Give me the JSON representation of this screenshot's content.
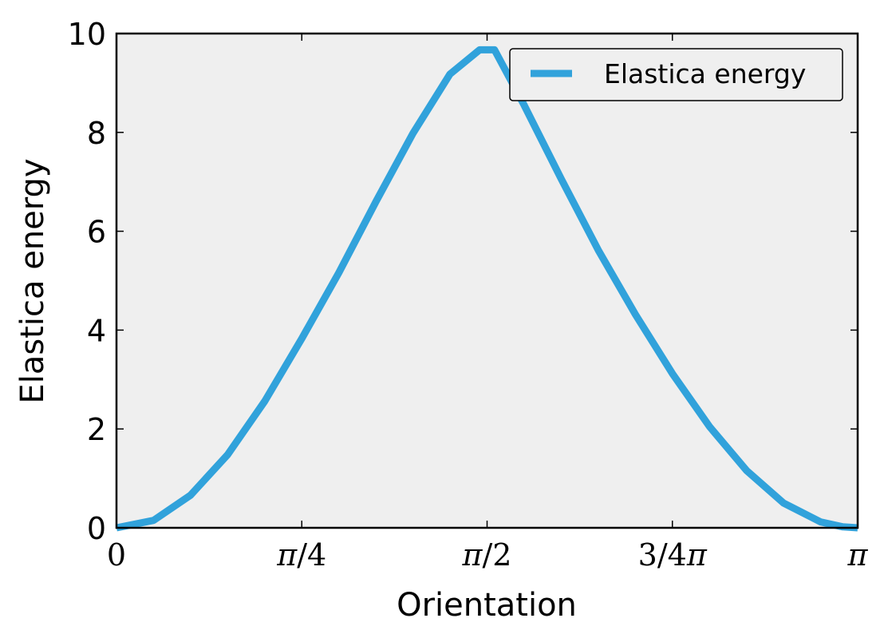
{
  "chart_data": {
    "type": "line",
    "title": "",
    "xlabel": "Orientation",
    "ylabel": "Elastica energy",
    "xlim": [
      0,
      3.14159
    ],
    "ylim": [
      0,
      10
    ],
    "x_tick_values": [
      0,
      0.7854,
      1.5708,
      2.3562,
      3.14159
    ],
    "x_tick_labels": [
      "0",
      "π/4",
      "π/2",
      "3/4π",
      "π"
    ],
    "y_tick_values": [
      0,
      2,
      4,
      6,
      8,
      10
    ],
    "y_tick_labels": [
      "0",
      "2",
      "4",
      "6",
      "8",
      "10"
    ],
    "grid": false,
    "legend": {
      "position": "top-right",
      "entries": [
        "Elastica energy"
      ]
    },
    "colors": {
      "series": "#31a2db",
      "plot_background": "#efefef",
      "axes": "#000000"
    },
    "series": [
      {
        "name": "Elastica energy",
        "x": [
          0,
          0.1571,
          0.3142,
          0.4712,
          0.6283,
          0.7854,
          0.9425,
          1.0996,
          1.2566,
          1.4137,
          1.5393,
          1.5708,
          1.6022,
          1.7279,
          1.885,
          2.042,
          2.1991,
          2.3562,
          2.5133,
          2.6704,
          2.8274,
          2.9845,
          3.0788,
          3.1416
        ],
        "values": [
          0,
          0.15,
          0.66,
          1.48,
          2.56,
          3.83,
          5.16,
          6.6,
          7.98,
          9.18,
          9.67,
          9.67,
          9.67,
          8.55,
          7.06,
          5.62,
          4.32,
          3.12,
          2.05,
          1.16,
          0.5,
          0.12,
          0.02,
          0
        ]
      }
    ]
  }
}
